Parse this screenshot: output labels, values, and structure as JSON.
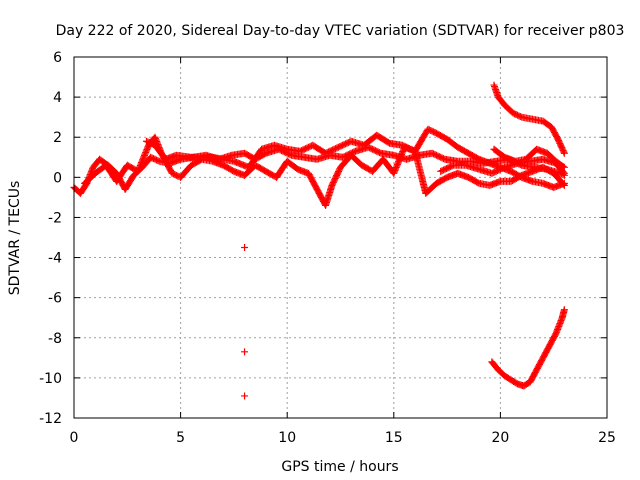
{
  "chart_data": {
    "type": "scatter",
    "title": "Day 222 of 2020, Sidereal Day-to-day VTEC variation (SDTVAR) for receiver p803",
    "xlabel": "GPS time / hours",
    "ylabel": "SDTVAR / TECUs",
    "xlim": [
      0,
      25
    ],
    "ylim": [
      -12,
      6
    ],
    "xticks": [
      0,
      5,
      10,
      15,
      20,
      25
    ],
    "yticks": [
      -12,
      -10,
      -8,
      -6,
      -4,
      -2,
      0,
      2,
      4,
      6
    ],
    "xtick_labels": [
      "0",
      "5",
      "10",
      "15",
      "20",
      "25"
    ],
    "ytick_labels": [
      "-12",
      "-10",
      "-8",
      "-6",
      "-4",
      "-2",
      "0",
      "2",
      "4",
      "6"
    ],
    "grid": true,
    "marker": "+",
    "color": "#ff0000",
    "series": [
      {
        "name": "SDTVAR",
        "tracks": [
          [
            [
              0.0,
              -0.5
            ],
            [
              0.3,
              -0.8
            ],
            [
              0.6,
              -0.3
            ],
            [
              0.9,
              0.5
            ],
            [
              1.2,
              0.9
            ],
            [
              1.6,
              0.6
            ],
            [
              2.0,
              0.2
            ],
            [
              2.4,
              -0.6
            ],
            [
              2.8,
              0.1
            ],
            [
              3.2,
              0.5
            ],
            [
              3.6,
              1.0
            ],
            [
              4.0,
              0.8
            ],
            [
              4.5,
              0.7
            ],
            [
              5.0,
              0.9
            ],
            [
              5.6,
              1.0
            ],
            [
              6.2,
              1.1
            ],
            [
              6.8,
              0.9
            ],
            [
              7.4,
              1.1
            ],
            [
              8.0,
              1.2
            ],
            [
              8.5,
              0.9
            ],
            [
              9.0,
              1.2
            ],
            [
              9.6,
              1.4
            ],
            [
              10.2,
              1.1
            ],
            [
              10.8,
              1.0
            ],
            [
              11.4,
              0.9
            ],
            [
              12.0,
              1.1
            ],
            [
              12.6,
              1.0
            ],
            [
              13.2,
              1.3
            ],
            [
              13.8,
              1.5
            ],
            [
              14.4,
              1.2
            ],
            [
              15.0,
              1.1
            ],
            [
              15.6,
              0.9
            ],
            [
              16.2,
              1.1
            ],
            [
              16.8,
              1.2
            ],
            [
              17.4,
              0.9
            ],
            [
              18.0,
              0.8
            ],
            [
              18.6,
              0.8
            ],
            [
              19.2,
              0.7
            ],
            [
              19.8,
              0.8
            ],
            [
              20.4,
              0.9
            ],
            [
              21.0,
              0.6
            ],
            [
              21.6,
              0.5
            ],
            [
              22.2,
              0.4
            ],
            [
              22.8,
              0.2
            ],
            [
              23.0,
              0.1
            ]
          ],
          [
            [
              0.5,
              -0.3
            ],
            [
              1.0,
              0.2
            ],
            [
              1.5,
              0.6
            ],
            [
              2.0,
              -0.2
            ],
            [
              2.5,
              0.6
            ],
            [
              3.0,
              0.3
            ],
            [
              3.5,
              1.6
            ],
            [
              3.8,
              2.0
            ],
            [
              4.1,
              1.2
            ],
            [
              4.6,
              0.2
            ],
            [
              5.0,
              0.0
            ],
            [
              5.5,
              0.6
            ],
            [
              6.0,
              0.9
            ],
            [
              6.5,
              0.8
            ],
            [
              7.0,
              0.6
            ],
            [
              7.5,
              0.3
            ],
            [
              8.0,
              0.1
            ],
            [
              8.5,
              0.6
            ],
            [
              9.0,
              0.3
            ],
            [
              9.5,
              0.0
            ],
            [
              10.0,
              0.8
            ],
            [
              10.5,
              0.4
            ],
            [
              11.0,
              0.2
            ],
            [
              11.5,
              -0.8
            ],
            [
              11.8,
              -1.4
            ],
            [
              12.1,
              -0.4
            ],
            [
              12.5,
              0.5
            ],
            [
              13.0,
              1.1
            ],
            [
              13.5,
              0.6
            ],
            [
              14.0,
              0.3
            ],
            [
              14.5,
              0.9
            ],
            [
              15.0,
              0.2
            ],
            [
              15.5,
              1.5
            ],
            [
              16.0,
              1.3
            ],
            [
              16.5,
              -0.8
            ],
            [
              17.0,
              -0.3
            ],
            [
              17.5,
              0.0
            ],
            [
              18.0,
              0.2
            ],
            [
              18.5,
              0.0
            ],
            [
              19.0,
              -0.3
            ],
            [
              19.5,
              -0.4
            ],
            [
              20.0,
              -0.2
            ],
            [
              20.5,
              -0.2
            ],
            [
              21.0,
              0.1
            ],
            [
              21.5,
              0.3
            ],
            [
              22.0,
              0.5
            ],
            [
              22.5,
              0.2
            ],
            [
              23.0,
              -0.4
            ]
          ],
          [
            [
              3.4,
              1.8
            ],
            [
              3.8,
              1.6
            ],
            [
              4.3,
              0.9
            ],
            [
              4.8,
              1.1
            ],
            [
              5.5,
              1.0
            ],
            [
              6.5,
              1.0
            ],
            [
              7.5,
              0.8
            ],
            [
              8.2,
              0.5
            ],
            [
              8.8,
              1.4
            ],
            [
              9.4,
              1.6
            ],
            [
              10.0,
              1.4
            ],
            [
              10.6,
              1.3
            ],
            [
              11.2,
              1.6
            ],
            [
              11.8,
              1.2
            ],
            [
              12.4,
              1.5
            ],
            [
              13.0,
              1.8
            ],
            [
              13.6,
              1.6
            ],
            [
              14.2,
              2.1
            ],
            [
              14.8,
              1.7
            ],
            [
              15.4,
              1.6
            ],
            [
              16.0,
              1.3
            ],
            [
              16.6,
              2.4
            ],
            [
              17.0,
              2.2
            ],
            [
              17.5,
              1.9
            ],
            [
              18.0,
              1.5
            ],
            [
              18.5,
              1.2
            ],
            [
              19.0,
              0.9
            ],
            [
              19.5,
              0.7
            ],
            [
              20.0,
              0.5
            ],
            [
              20.5,
              0.3
            ],
            [
              21.0,
              0.0
            ],
            [
              21.5,
              -0.2
            ],
            [
              22.0,
              -0.3
            ],
            [
              22.5,
              -0.5
            ],
            [
              23.0,
              -0.3
            ]
          ],
          [
            [
              19.7,
              4.6
            ],
            [
              19.9,
              4.0
            ],
            [
              20.2,
              3.6
            ],
            [
              20.6,
              3.2
            ],
            [
              21.0,
              3.0
            ],
            [
              21.5,
              2.9
            ],
            [
              22.0,
              2.8
            ],
            [
              22.4,
              2.5
            ],
            [
              22.7,
              1.9
            ],
            [
              23.0,
              1.2
            ]
          ],
          [
            [
              19.7,
              1.4
            ],
            [
              20.2,
              1.0
            ],
            [
              20.7,
              0.8
            ],
            [
              21.2,
              0.9
            ],
            [
              21.7,
              1.4
            ],
            [
              22.2,
              1.2
            ],
            [
              22.6,
              0.8
            ],
            [
              23.0,
              0.5
            ]
          ],
          [
            [
              17.2,
              0.3
            ],
            [
              17.8,
              0.6
            ],
            [
              18.4,
              0.6
            ],
            [
              19.0,
              0.4
            ],
            [
              19.6,
              0.2
            ],
            [
              20.2,
              0.5
            ],
            [
              20.8,
              0.7
            ],
            [
              21.4,
              0.8
            ],
            [
              22.0,
              0.9
            ],
            [
              22.6,
              0.7
            ],
            [
              23.0,
              0.2
            ]
          ],
          [
            [
              19.6,
              -9.2
            ],
            [
              19.9,
              -9.6
            ],
            [
              20.2,
              -9.9
            ],
            [
              20.5,
              -10.1
            ],
            [
              20.8,
              -10.3
            ],
            [
              21.1,
              -10.4
            ],
            [
              21.4,
              -10.2
            ],
            [
              21.7,
              -9.6
            ],
            [
              22.0,
              -9.0
            ],
            [
              22.3,
              -8.4
            ],
            [
              22.6,
              -7.8
            ],
            [
              22.9,
              -7.0
            ],
            [
              23.0,
              -6.6
            ]
          ],
          [
            [
              8.0,
              -3.5
            ]
          ],
          [
            [
              8.0,
              -8.7
            ]
          ],
          [
            [
              8.0,
              -10.9
            ]
          ]
        ]
      }
    ]
  }
}
